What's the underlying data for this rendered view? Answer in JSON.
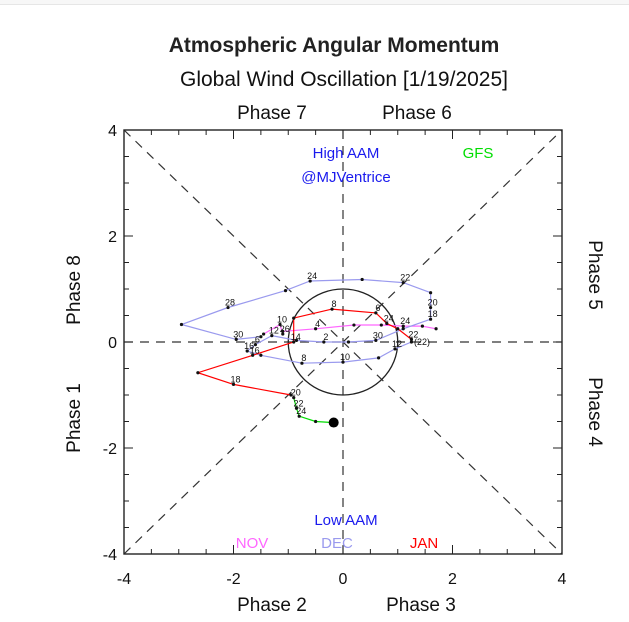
{
  "chart_data": {
    "type": "line",
    "title": "Atmospheric Angular Momentum",
    "subtitle": "Global Wind Oscillation [1/19/2025]",
    "xlim": [
      -4,
      4
    ],
    "ylim": [
      -4,
      4
    ],
    "x_ticks": [
      "-4",
      "-2",
      "0",
      "2",
      "4"
    ],
    "y_ticks": [
      "4",
      "2",
      "0",
      "-2",
      "-4"
    ],
    "phase_labels": {
      "top_left": "Phase 7",
      "top_right": "Phase 6",
      "right_top": "Phase 5",
      "right_bottom": "Phase 4",
      "bottom_right": "Phase 3",
      "bottom_left": "Phase 2",
      "left_bottom": "Phase 1",
      "left_top": "Phase 8"
    },
    "annotations": {
      "high": "High AAM",
      "handle": "@MJVentrice",
      "low": "Low AAM",
      "model": "GFS",
      "forecast_mark": "(22)"
    },
    "grid": false,
    "unit_circle": true,
    "colors": {
      "nov": "#ff66ff",
      "dec": "#9a9aee",
      "jan": "#ff0000",
      "gfs": "#00dd00",
      "high": "#1a1aee",
      "low": "#1a1aee"
    },
    "series": [
      {
        "name": "NOV",
        "color": "#ff66ff",
        "points": [
          {
            "x": 1.7,
            "y": 0.25,
            "label": ""
          },
          {
            "x": 1.45,
            "y": 0.3,
            "label": ""
          },
          {
            "x": 1.1,
            "y": 0.3,
            "label": "24"
          },
          {
            "x": 0.7,
            "y": 0.32,
            "label": ""
          },
          {
            "x": 0.2,
            "y": 0.32,
            "label": ""
          },
          {
            "x": -0.5,
            "y": 0.25,
            "label": "4"
          },
          {
            "x": -1.1,
            "y": 0.2,
            "label": ""
          },
          {
            "x": -1.1,
            "y": 0.15,
            "label": "26"
          },
          {
            "x": -1.15,
            "y": 0.33,
            "label": "10"
          },
          {
            "x": -1.45,
            "y": 0.15,
            "label": ""
          }
        ]
      },
      {
        "name": "DEC",
        "color": "#9a9aee",
        "points": [
          {
            "x": -1.5,
            "y": 0.1,
            "label": ""
          },
          {
            "x": -1.95,
            "y": 0.05,
            "label": "30"
          },
          {
            "x": -2.95,
            "y": 0.33,
            "label": ""
          },
          {
            "x": -2.1,
            "y": 0.65,
            "label": "28"
          },
          {
            "x": -1.05,
            "y": 0.97,
            "label": ""
          },
          {
            "x": -0.6,
            "y": 1.15,
            "label": "24"
          },
          {
            "x": 0.35,
            "y": 1.18,
            "label": ""
          },
          {
            "x": 1.1,
            "y": 1.12,
            "label": "22"
          },
          {
            "x": 1.6,
            "y": 0.93,
            "label": ""
          },
          {
            "x": 1.6,
            "y": 0.65,
            "label": "20"
          },
          {
            "x": 1.6,
            "y": 0.43,
            "label": "18"
          },
          {
            "x": 1.1,
            "y": 0.25,
            "label": ""
          },
          {
            "x": 0.6,
            "y": 0.03,
            "label": "30"
          },
          {
            "x": 0.1,
            "y": 0.0,
            "label": ""
          },
          {
            "x": -0.35,
            "y": 0.0,
            "label": "2"
          },
          {
            "x": -0.85,
            "y": 0.03,
            "label": ""
          },
          {
            "x": -1.3,
            "y": 0.12,
            "label": "12"
          },
          {
            "x": -1.6,
            "y": -0.05,
            "label": "6"
          },
          {
            "x": -1.75,
            "y": -0.17,
            "label": "16"
          },
          {
            "x": -1.5,
            "y": -0.25,
            "label": ""
          },
          {
            "x": -0.75,
            "y": -0.4,
            "label": "8"
          },
          {
            "x": 0.0,
            "y": -0.38,
            "label": "10"
          },
          {
            "x": 0.65,
            "y": -0.3,
            "label": ""
          },
          {
            "x": 0.95,
            "y": -0.13,
            "label": "12"
          },
          {
            "x": 1.25,
            "y": 0.0,
            "label": ""
          }
        ]
      },
      {
        "name": "JAN",
        "color": "#ff0000",
        "points": [
          {
            "x": 1.25,
            "y": 0.05,
            "label": "22"
          },
          {
            "x": 1.0,
            "y": 0.25,
            "label": ""
          },
          {
            "x": 0.8,
            "y": 0.35,
            "label": "24"
          },
          {
            "x": 0.6,
            "y": 0.55,
            "label": "6"
          },
          {
            "x": -0.2,
            "y": 0.62,
            "label": "8"
          },
          {
            "x": -0.9,
            "y": 0.45,
            "label": ""
          },
          {
            "x": -0.9,
            "y": 0.0,
            "label": "14"
          },
          {
            "x": -1.65,
            "y": -0.25,
            "label": "16"
          },
          {
            "x": -2.65,
            "y": -0.58,
            "label": ""
          },
          {
            "x": -2.0,
            "y": -0.8,
            "label": "18"
          },
          {
            "x": -0.95,
            "y": -1.0,
            "label": ""
          }
        ]
      },
      {
        "name": "GFS",
        "color": "#00dd00",
        "points": [
          {
            "x": -0.9,
            "y": -1.05,
            "label": "20"
          },
          {
            "x": -0.85,
            "y": -1.25,
            "label": "22"
          },
          {
            "x": -0.8,
            "y": -1.4,
            "label": "24"
          },
          {
            "x": -0.5,
            "y": -1.5,
            "label": ""
          },
          {
            "x": -0.17,
            "y": -1.52,
            "label": ""
          }
        ]
      }
    ],
    "legend_entries": [
      "NOV",
      "DEC",
      "JAN"
    ]
  }
}
